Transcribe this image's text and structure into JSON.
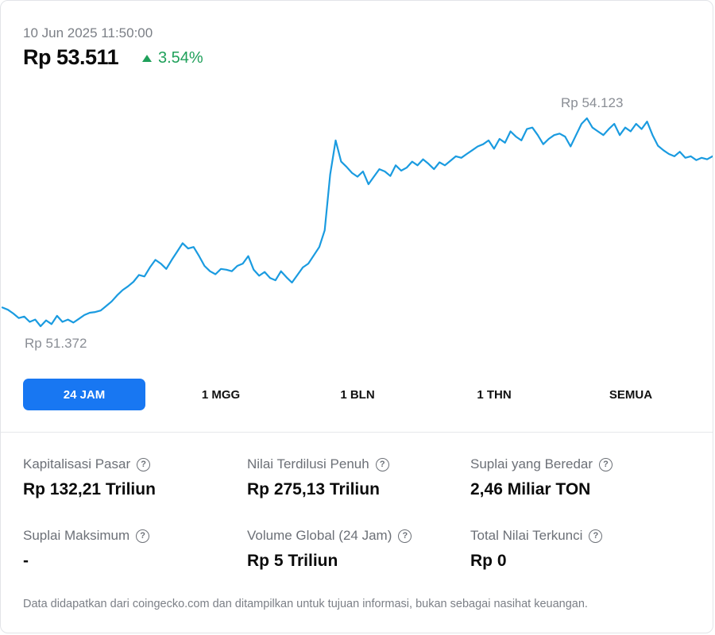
{
  "header": {
    "timestamp": "10 Jun 2025 11:50:00",
    "price": "Rp 53.511",
    "change": "3.54%",
    "change_direction": "up",
    "change_color": "#1fa05a"
  },
  "chart": {
    "high_label": "Rp 54.123",
    "low_label": "Rp 51.372",
    "line_color": "#1a9be0",
    "chart_data": {
      "type": "line",
      "title": "",
      "xlabel": "",
      "ylabel": "",
      "ylim": [
        51372,
        54123
      ],
      "grid": false,
      "series": [
        {
          "values": [
            51620,
            51590,
            51540,
            51480,
            51500,
            51430,
            51460,
            51372,
            51450,
            51400,
            51510,
            51430,
            51460,
            51420,
            51470,
            51520,
            51550,
            51560,
            51580,
            51640,
            51700,
            51780,
            51850,
            51900,
            51960,
            52050,
            52030,
            52150,
            52250,
            52200,
            52130,
            52250,
            52360,
            52470,
            52400,
            52420,
            52300,
            52170,
            52100,
            52060,
            52130,
            52120,
            52100,
            52170,
            52200,
            52300,
            52120,
            52040,
            52090,
            52010,
            51980,
            52100,
            52020,
            51950,
            52050,
            52150,
            52200,
            52310,
            52420,
            52640,
            53380,
            53830,
            53550,
            53480,
            53400,
            53350,
            53420,
            53250,
            53350,
            53450,
            53420,
            53360,
            53500,
            53430,
            53470,
            53550,
            53500,
            53580,
            53520,
            53450,
            53540,
            53500,
            53560,
            53620,
            53600,
            53650,
            53700,
            53750,
            53780,
            53830,
            53720,
            53850,
            53800,
            53950,
            53880,
            53830,
            53980,
            54000,
            53900,
            53780,
            53850,
            53900,
            53920,
            53880,
            53750,
            53900,
            54050,
            54123,
            54000,
            53950,
            53900,
            53980,
            54050,
            53900,
            54000,
            53950,
            54050,
            53980,
            54080,
            53900,
            53760,
            53700,
            53650,
            53620,
            53680,
            53600,
            53620,
            53570,
            53600,
            53580,
            53620
          ]
        }
      ]
    }
  },
  "tabs": [
    {
      "label": "24 JAM",
      "active": true
    },
    {
      "label": "1 MGG",
      "active": false
    },
    {
      "label": "1 BLN",
      "active": false
    },
    {
      "label": "1 THN",
      "active": false
    },
    {
      "label": "SEMUA",
      "active": false
    }
  ],
  "stats": [
    {
      "label": "Kapitalisasi Pasar",
      "value": "Rp 132,21 Triliun"
    },
    {
      "label": "Nilai Terdilusi Penuh",
      "value": "Rp 275,13 Triliun"
    },
    {
      "label": "Suplai yang Beredar",
      "value": "2,46 Miliar TON"
    },
    {
      "label": "Suplai Maksimum",
      "value": "-"
    },
    {
      "label": "Volume Global (24 Jam)",
      "value": "Rp 5 Triliun"
    },
    {
      "label": "Total Nilai Terkunci",
      "value": "Rp 0"
    }
  ],
  "help_icon_glyph": "?",
  "disclaimer": "Data didapatkan dari coingecko.com dan ditampilkan untuk tujuan informasi, bukan sebagai nasihat keuangan."
}
